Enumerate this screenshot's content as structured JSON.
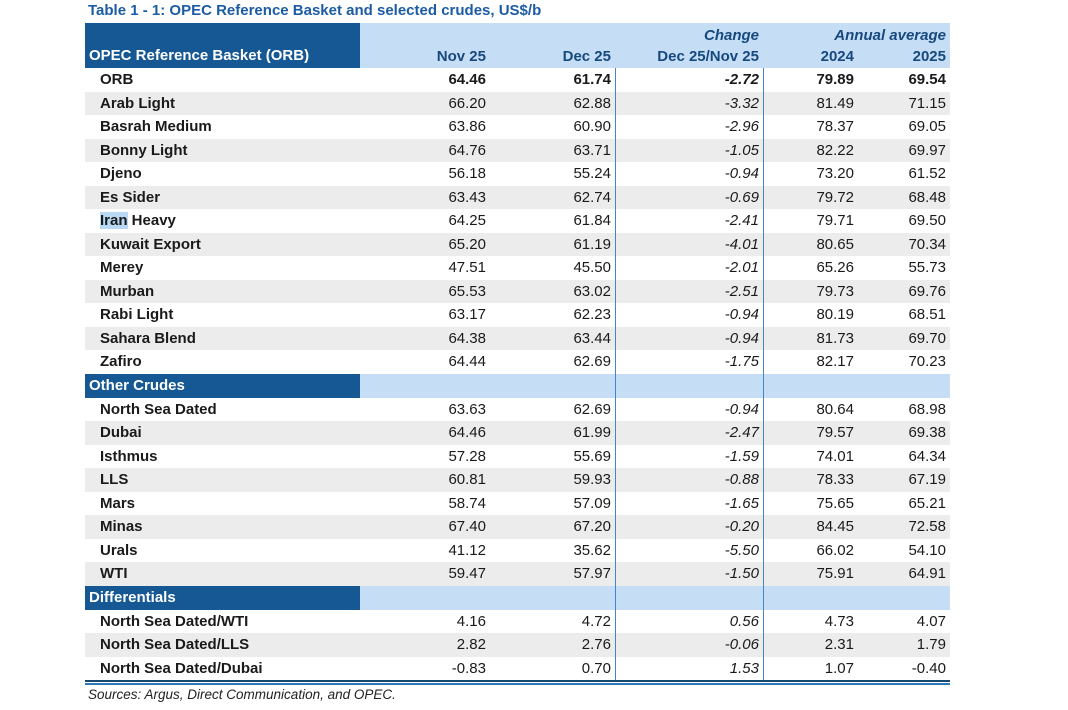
{
  "title": "Table 1 - 1: OPEC Reference Basket and selected crudes, US$/b",
  "header": {
    "corner_label": "OPEC Reference Basket (ORB)",
    "group_change": "Change",
    "group_annual": "Annual average",
    "columns": [
      "Nov 25",
      "Dec 25",
      "Dec 25/Nov 25",
      "2024",
      "2025"
    ]
  },
  "sections": [
    {
      "label": null,
      "rows": [
        {
          "label": "ORB",
          "bold": true,
          "values": [
            "64.46",
            "61.74",
            "-2.72",
            "79.89",
            "69.54"
          ]
        },
        {
          "label": "Arab Light",
          "values": [
            "66.20",
            "62.88",
            "-3.32",
            "81.49",
            "71.15"
          ]
        },
        {
          "label": "Basrah Medium",
          "values": [
            "63.86",
            "60.90",
            "-2.96",
            "78.37",
            "69.05"
          ]
        },
        {
          "label": "Bonny Light",
          "values": [
            "64.76",
            "63.71",
            "-1.05",
            "82.22",
            "69.97"
          ]
        },
        {
          "label": "Djeno",
          "values": [
            "56.18",
            "55.24",
            "-0.94",
            "73.20",
            "61.52"
          ]
        },
        {
          "label": "Es Sider",
          "values": [
            "63.43",
            "62.74",
            "-0.69",
            "79.72",
            "68.48"
          ]
        },
        {
          "label": "Iran Heavy",
          "highlight": "Iran",
          "values": [
            "64.25",
            "61.84",
            "-2.41",
            "79.71",
            "69.50"
          ]
        },
        {
          "label": "Kuwait Export",
          "values": [
            "65.20",
            "61.19",
            "-4.01",
            "80.65",
            "70.34"
          ]
        },
        {
          "label": "Merey",
          "values": [
            "47.51",
            "45.50",
            "-2.01",
            "65.26",
            "55.73"
          ]
        },
        {
          "label": "Murban",
          "values": [
            "65.53",
            "63.02",
            "-2.51",
            "79.73",
            "69.76"
          ]
        },
        {
          "label": "Rabi Light",
          "values": [
            "63.17",
            "62.23",
            "-0.94",
            "80.19",
            "68.51"
          ]
        },
        {
          "label": "Sahara Blend",
          "values": [
            "64.38",
            "63.44",
            "-0.94",
            "81.73",
            "69.70"
          ]
        },
        {
          "label": "Zafiro",
          "values": [
            "64.44",
            "62.69",
            "-1.75",
            "82.17",
            "70.23"
          ]
        }
      ]
    },
    {
      "label": "Other Crudes",
      "rows": [
        {
          "label": "North Sea Dated",
          "values": [
            "63.63",
            "62.69",
            "-0.94",
            "80.64",
            "68.98"
          ]
        },
        {
          "label": "Dubai",
          "values": [
            "64.46",
            "61.99",
            "-2.47",
            "79.57",
            "69.38"
          ]
        },
        {
          "label": "Isthmus",
          "values": [
            "57.28",
            "55.69",
            "-1.59",
            "74.01",
            "64.34"
          ]
        },
        {
          "label": "LLS",
          "values": [
            "60.81",
            "59.93",
            "-0.88",
            "78.33",
            "67.19"
          ]
        },
        {
          "label": "Mars",
          "values": [
            "58.74",
            "57.09",
            "-1.65",
            "75.65",
            "65.21"
          ]
        },
        {
          "label": "Minas",
          "values": [
            "67.40",
            "67.20",
            "-0.20",
            "84.45",
            "72.58"
          ]
        },
        {
          "label": "Urals",
          "values": [
            "41.12",
            "35.62",
            "-5.50",
            "66.02",
            "54.10"
          ]
        },
        {
          "label": "WTI",
          "values": [
            "59.47",
            "57.97",
            "-1.50",
            "75.91",
            "64.91"
          ]
        }
      ]
    },
    {
      "label": "Differentials",
      "rows": [
        {
          "label": "North Sea Dated/WTI",
          "values": [
            "4.16",
            "4.72",
            "0.56",
            "4.73",
            "4.07"
          ]
        },
        {
          "label": "North Sea Dated/LLS",
          "values": [
            "2.82",
            "2.76",
            "-0.06",
            "2.31",
            "1.79"
          ]
        },
        {
          "label": "North Sea Dated/Dubai",
          "values": [
            "-0.83",
            "0.70",
            "1.53",
            "1.07",
            "-0.40"
          ]
        }
      ]
    }
  ],
  "footer": {
    "sources": "Sources:  Argus, Direct Communication, and OPEC."
  },
  "colors": {
    "dark_blue": "#165894",
    "light_blue": "#C5DEF6",
    "stripe_gray": "#ECECEC",
    "separator_blue": "#4286C5",
    "title_blue": "#1B5CA4",
    "header_text_blue": "#17497E",
    "selection_blue": "#B8D8F4",
    "border_dark": "#17486F",
    "border_mid": "#2F78B8"
  }
}
